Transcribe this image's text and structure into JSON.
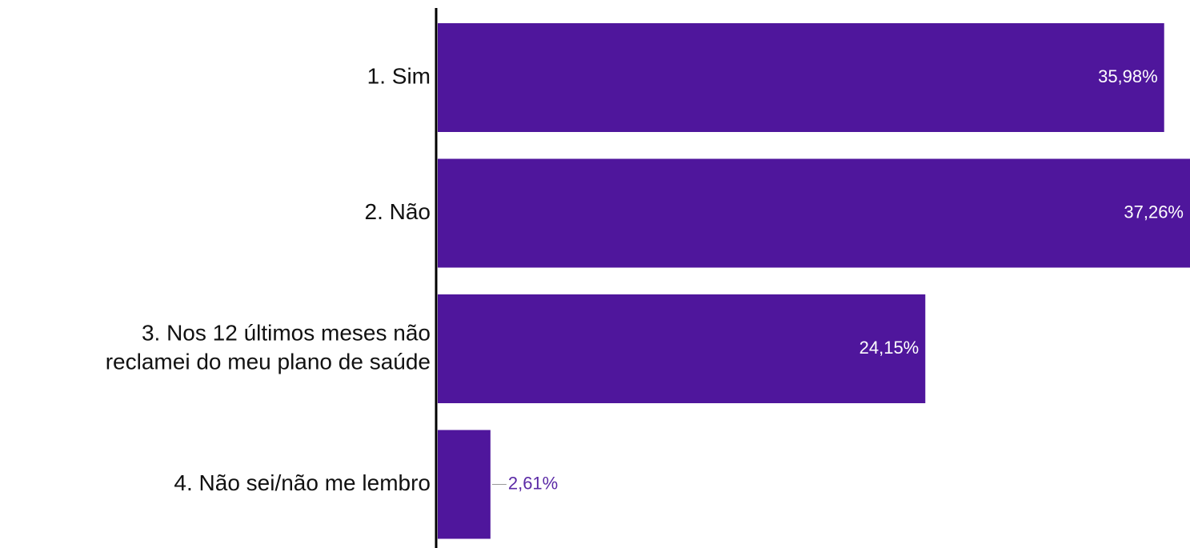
{
  "chart_data": {
    "type": "bar",
    "orientation": "horizontal",
    "categories": [
      "1. Sim",
      "2. Não",
      "3. Nos 12 últimos meses não reclamei do meu plano de saúde",
      "4. Não sei/não me lembro"
    ],
    "category_lines": [
      [
        "1. Sim"
      ],
      [
        "2. Não"
      ],
      [
        "3. Nos 12 últimos meses não",
        "reclamei do meu plano de saúde"
      ],
      [
        "4. Não sei/não me lembro"
      ]
    ],
    "values": [
      35.98,
      37.26,
      24.15,
      2.61
    ],
    "value_labels": [
      "35,98%",
      "37,26%",
      "24,15%",
      "2,61%"
    ],
    "xlim": [
      0,
      37.26
    ],
    "title": "",
    "xlabel": "",
    "ylabel": "",
    "grid": false,
    "legend": "none",
    "colors": {
      "bar": "#4f169c",
      "label_inside": "#ffffff",
      "label_outside": "#5b2aa6",
      "axis": "#000000"
    }
  }
}
